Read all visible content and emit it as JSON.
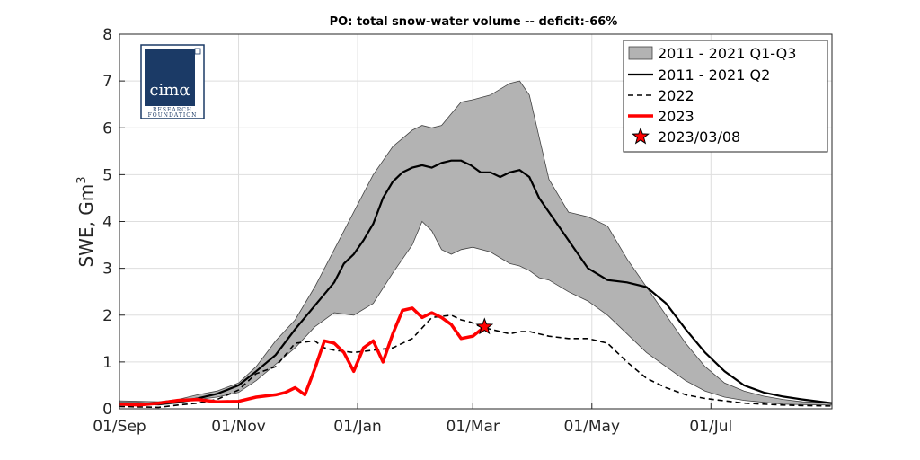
{
  "chart_data": {
    "type": "line",
    "title": "PO: total snow-water volume -- deficit:-66%",
    "ylabel": "SWE, Gm",
    "ylabel_sup": "3",
    "xlabel": "",
    "ylim": [
      0,
      8
    ],
    "xlim": [
      0,
      365
    ],
    "y_ticks": [
      0,
      1,
      2,
      3,
      4,
      5,
      6,
      7,
      8
    ],
    "x_ticks": [
      {
        "day": 0,
        "label": "01/Sep"
      },
      {
        "day": 61,
        "label": "01/Nov"
      },
      {
        "day": 122,
        "label": "01/Jan"
      },
      {
        "day": 181,
        "label": "01/Mar"
      },
      {
        "day": 242,
        "label": "01/May"
      },
      {
        "day": 303,
        "label": "01/Jul"
      }
    ],
    "grid": true,
    "legend_position": "top-right",
    "colors": {
      "band_fill": "#b3b3b3",
      "band_edge": "#444444",
      "median": "#000000",
      "y2022": "#000000",
      "y2023": "#ff0000",
      "marker": "#ff0000"
    },
    "band": {
      "name": "2011 - 2021 Q1-Q3",
      "x": [
        0,
        10,
        20,
        30,
        40,
        50,
        61,
        70,
        80,
        90,
        100,
        110,
        120,
        130,
        140,
        150,
        155,
        160,
        165,
        170,
        175,
        181,
        190,
        200,
        205,
        210,
        215,
        220,
        230,
        240,
        250,
        260,
        270,
        280,
        290,
        300,
        310,
        320,
        330,
        340,
        350,
        365
      ],
      "upper": [
        0.17,
        0.16,
        0.15,
        0.2,
        0.3,
        0.38,
        0.55,
        0.9,
        1.45,
        1.9,
        2.6,
        3.4,
        4.2,
        5.0,
        5.6,
        5.95,
        6.05,
        6.0,
        6.05,
        6.3,
        6.55,
        6.6,
        6.7,
        6.95,
        7.0,
        6.7,
        5.8,
        4.9,
        4.2,
        4.1,
        3.9,
        3.2,
        2.6,
        2.0,
        1.4,
        0.9,
        0.55,
        0.38,
        0.27,
        0.2,
        0.15,
        0.13
      ],
      "lower": [
        0.1,
        0.1,
        0.08,
        0.12,
        0.2,
        0.25,
        0.35,
        0.6,
        0.95,
        1.3,
        1.75,
        2.05,
        2.0,
        2.25,
        2.9,
        3.5,
        4.0,
        3.8,
        3.4,
        3.3,
        3.4,
        3.45,
        3.35,
        3.1,
        3.05,
        2.95,
        2.8,
        2.75,
        2.5,
        2.3,
        2.0,
        1.6,
        1.2,
        0.9,
        0.6,
        0.38,
        0.25,
        0.18,
        0.14,
        0.1,
        0.09,
        0.08
      ]
    },
    "series": [
      {
        "name": "2011 - 2021 Q2",
        "style": "solid",
        "x": [
          0,
          10,
          20,
          30,
          40,
          50,
          61,
          70,
          80,
          90,
          100,
          110,
          115,
          120,
          125,
          130,
          135,
          140,
          145,
          150,
          155,
          160,
          165,
          170,
          175,
          180,
          185,
          190,
          195,
          200,
          205,
          210,
          215,
          220,
          230,
          240,
          250,
          260,
          270,
          280,
          290,
          300,
          310,
          320,
          330,
          340,
          350,
          365
        ],
        "y": [
          0.12,
          0.12,
          0.1,
          0.15,
          0.22,
          0.32,
          0.5,
          0.8,
          1.15,
          1.7,
          2.2,
          2.7,
          3.1,
          3.3,
          3.6,
          3.95,
          4.5,
          4.85,
          5.05,
          5.15,
          5.2,
          5.15,
          5.25,
          5.3,
          5.3,
          5.2,
          5.05,
          5.05,
          4.95,
          5.05,
          5.1,
          4.95,
          4.5,
          4.2,
          3.6,
          3.0,
          2.75,
          2.7,
          2.6,
          2.25,
          1.7,
          1.2,
          0.8,
          0.5,
          0.35,
          0.26,
          0.2,
          0.12
        ]
      },
      {
        "name": "2022",
        "style": "dashed",
        "x": [
          0,
          10,
          20,
          30,
          40,
          50,
          61,
          70,
          80,
          90,
          100,
          105,
          110,
          120,
          130,
          140,
          150,
          160,
          170,
          175,
          180,
          185,
          190,
          200,
          205,
          210,
          220,
          230,
          240,
          250,
          260,
          270,
          280,
          290,
          300,
          310,
          320,
          330,
          340,
          350,
          365
        ],
        "y": [
          0.05,
          0.04,
          0.03,
          0.08,
          0.12,
          0.2,
          0.4,
          0.75,
          0.9,
          1.4,
          1.45,
          1.3,
          1.25,
          1.2,
          1.25,
          1.3,
          1.5,
          1.95,
          2.0,
          1.9,
          1.85,
          1.75,
          1.7,
          1.6,
          1.65,
          1.65,
          1.55,
          1.5,
          1.5,
          1.4,
          1.0,
          0.65,
          0.45,
          0.3,
          0.22,
          0.17,
          0.12,
          0.1,
          0.08,
          0.07,
          0.06
        ]
      },
      {
        "name": "2023",
        "style": "solid",
        "x": [
          0,
          10,
          20,
          30,
          40,
          50,
          61,
          70,
          80,
          85,
          90,
          95,
          100,
          105,
          110,
          115,
          120,
          125,
          130,
          135,
          140,
          145,
          150,
          155,
          160,
          165,
          170,
          175,
          181,
          187
        ],
        "y": [
          0.1,
          0.08,
          0.12,
          0.18,
          0.2,
          0.15,
          0.16,
          0.25,
          0.3,
          0.35,
          0.45,
          0.3,
          0.85,
          1.45,
          1.4,
          1.2,
          0.8,
          1.3,
          1.45,
          1.0,
          1.6,
          2.1,
          2.15,
          1.95,
          2.05,
          1.95,
          1.8,
          1.5,
          1.55,
          1.75
        ]
      }
    ],
    "marker": {
      "name": "2023/03/08",
      "x": 187,
      "y": 1.75
    },
    "legend": [
      {
        "label": "2011 - 2021 Q1-Q3"
      },
      {
        "label": "2011 - 2021 Q2"
      },
      {
        "label": "2022"
      },
      {
        "label": "2023"
      },
      {
        "label": "2023/03/08"
      }
    ]
  },
  "logo": {
    "main": "cimα",
    "line1": "RESEARCH",
    "line2": "FOUNDATION",
    "reg": "®"
  }
}
